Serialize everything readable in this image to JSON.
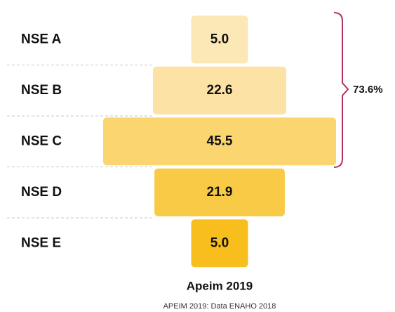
{
  "chart_data": {
    "type": "bar",
    "orientation": "funnel",
    "title": "Apeim 2019",
    "source": "APEIM 2019: Data ENAHO 2018",
    "annotation": "73.6%",
    "categories": [
      "NSE A",
      "NSE B",
      "NSE C",
      "NSE D",
      "NSE E"
    ],
    "values": [
      5.0,
      22.6,
      45.5,
      21.9,
      5.0
    ],
    "value_labels": [
      "5.0",
      "22.6",
      "45.5",
      "21.9",
      "5.0"
    ],
    "colors": [
      "#fce7b6",
      "#fce2a4",
      "#fbd670",
      "#f9ca45",
      "#f8be1e"
    ]
  }
}
